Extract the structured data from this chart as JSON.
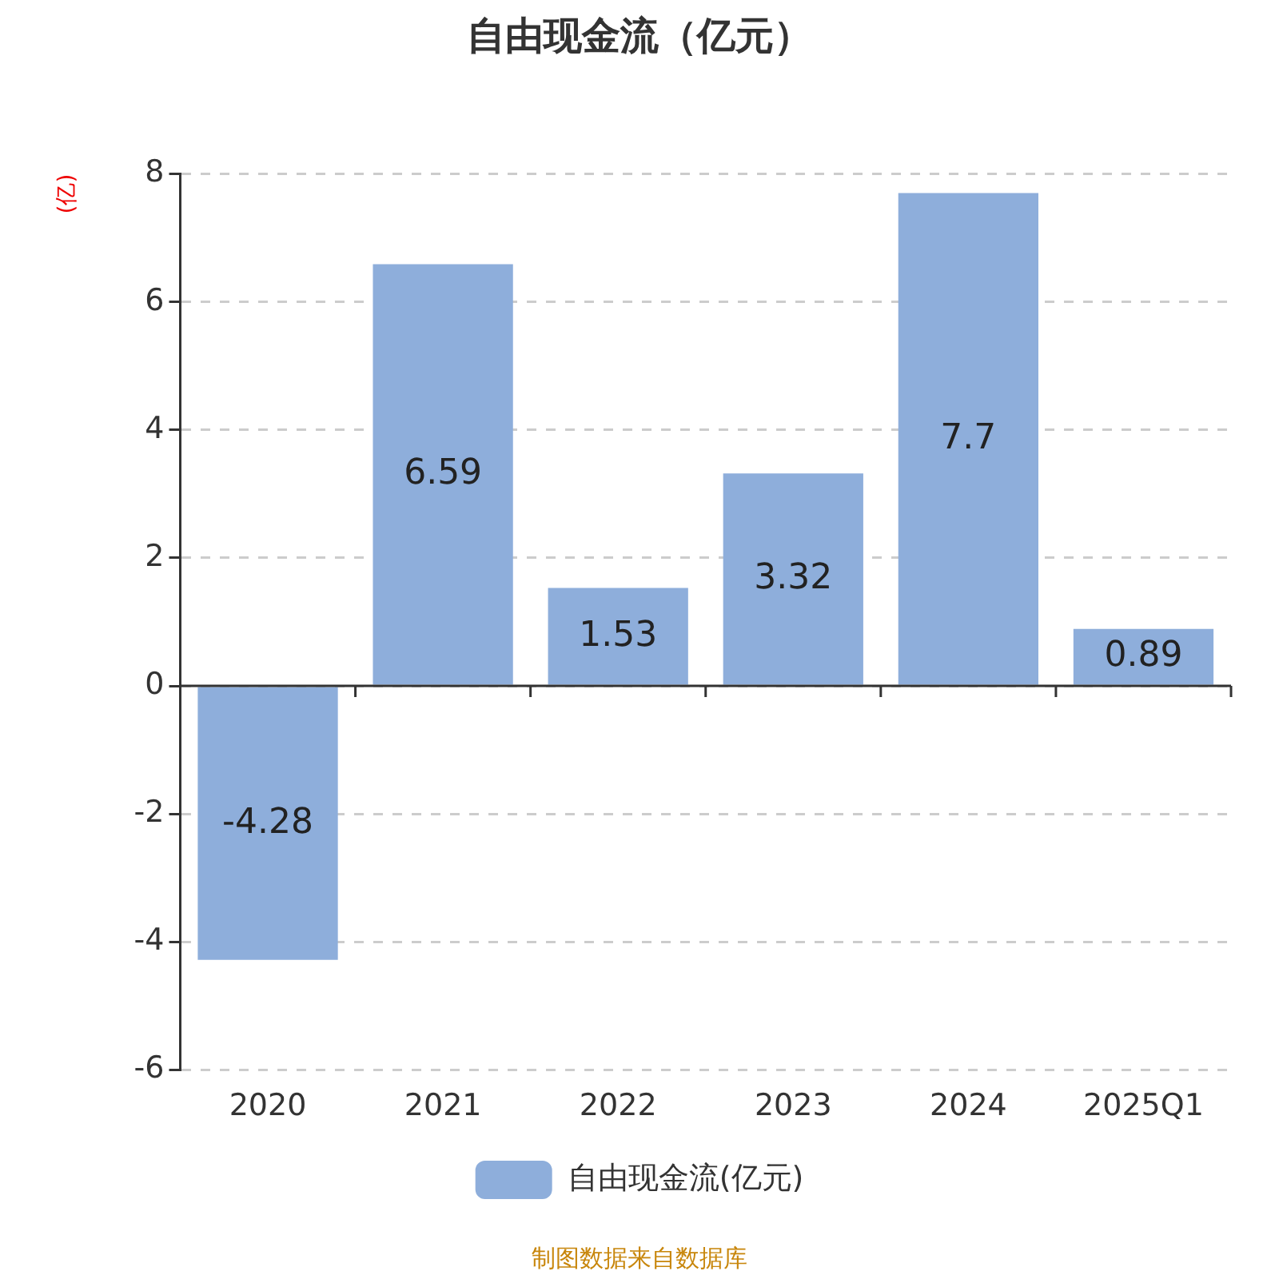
{
  "chart_data": {
    "type": "bar",
    "title": "自由现金流（亿元）",
    "ylabel": "(亿)",
    "categories": [
      "2020",
      "2021",
      "2022",
      "2023",
      "2024",
      "2025Q1"
    ],
    "series": [
      {
        "name": "自由现金流(亿元)",
        "color": "#8eaedb",
        "values": [
          -4.28,
          6.59,
          1.53,
          3.32,
          7.7,
          0.89
        ]
      }
    ],
    "ylim": [
      -6,
      8
    ],
    "yticks": [
      -6,
      -4,
      -2,
      0,
      2,
      4,
      6,
      8
    ],
    "grid": "y",
    "legend": "bottom",
    "data_labels": true,
    "annotations": [
      "制图数据来自数据库"
    ]
  }
}
